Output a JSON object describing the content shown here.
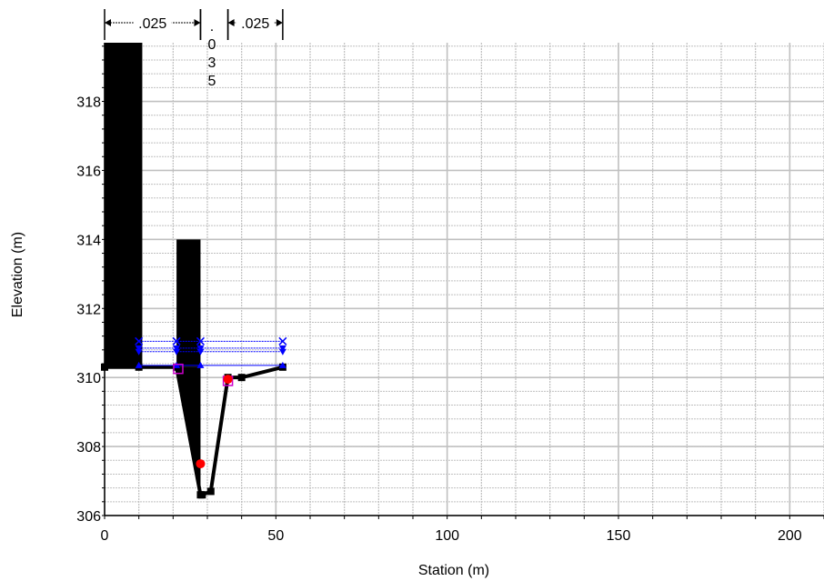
{
  "chart_data": {
    "type": "line",
    "title": "",
    "xlabel": "Station (m)",
    "ylabel": "Elevation (m)",
    "xlim": [
      0,
      210
    ],
    "ylim": [
      306,
      319.7
    ],
    "x_ticks": [
      "0",
      "50",
      "100",
      "150",
      "200"
    ],
    "y_ticks": [
      "306",
      "308",
      "310",
      "312",
      "314",
      "316",
      "318"
    ],
    "grid": true,
    "manning_n": [
      {
        "label": ".025",
        "x_from": 0,
        "x_to": 28
      },
      {
        "label": ".035",
        "x_from": 28,
        "x_to": 36
      },
      {
        "label": ".025",
        "x_from": 36,
        "x_to": 52
      }
    ],
    "ground_profile": {
      "x": [
        0,
        10,
        21,
        28,
        28.5,
        31,
        36,
        40,
        52
      ],
      "y": [
        310.3,
        310.3,
        310.3,
        306.6,
        306.6,
        306.7,
        310,
        310,
        310.3
      ]
    },
    "obstructions": [
      {
        "x_from": 0,
        "x_to": 11,
        "top": 319.7
      },
      {
        "x_from": 21,
        "x_to": 28,
        "top": 314
      }
    ],
    "water_surfaces": [
      {
        "elevation": 311.05,
        "marker": "x"
      },
      {
        "elevation": 310.85,
        "marker": "triangle-down"
      },
      {
        "elevation": 310.75,
        "marker": "triangle-down"
      },
      {
        "elevation": 310.35,
        "marker": "triangle-up"
      }
    ],
    "water_surface_points_x": [
      10,
      21,
      28,
      52
    ],
    "bank_stations": [
      {
        "x": 28,
        "y": 307.5
      },
      {
        "x": 36,
        "y": 309.95
      }
    ],
    "ineffective_markers": [
      {
        "x": 21.5,
        "y": 310.25
      },
      {
        "x": 36,
        "y": 309.9
      }
    ],
    "colors": {
      "ground": "#000000",
      "water": "#0000ff",
      "bank": "#ff0000",
      "ineffective": "#cc00cc",
      "grid": "#c0c0c0"
    }
  }
}
